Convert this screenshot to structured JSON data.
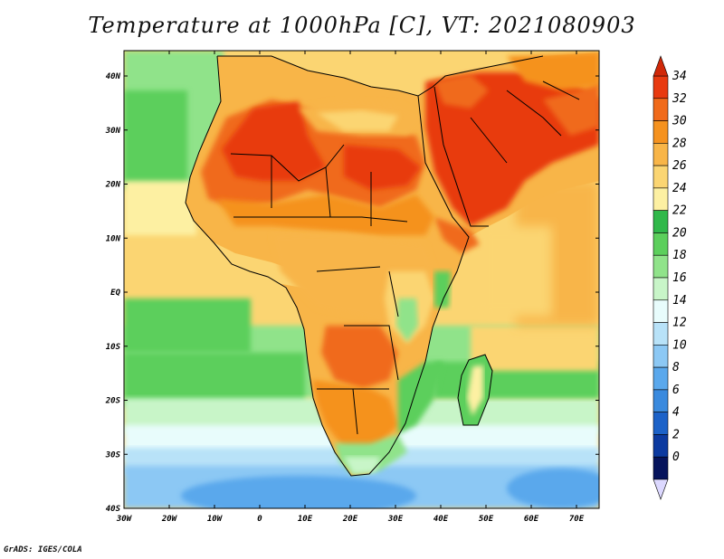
{
  "title": "Temperature at 1000hPa [C], VT: 2021080903",
  "credit": "GrADS: IGES/COLA",
  "lon_labels": [
    "30W",
    "20W",
    "10W",
    "0",
    "10E",
    "20E",
    "30E",
    "40E",
    "50E",
    "60E",
    "70E"
  ],
  "lat_labels": [
    "40N",
    "30N",
    "20N",
    "10N",
    "EQ",
    "10S",
    "20S",
    "30S",
    "40S"
  ],
  "colorbar": {
    "labels": [
      "34",
      "32",
      "30",
      "28",
      "26",
      "24",
      "22",
      "20",
      "18",
      "16",
      "14",
      "12",
      "10",
      "8",
      "6",
      "4",
      "2",
      "0"
    ],
    "colors": [
      "#e83a10",
      "#f06a1a",
      "#f5921f",
      "#f8b548",
      "#fbd572",
      "#fdf0a2",
      "#30b84a",
      "#5ccf5c",
      "#90e38a",
      "#c8f5c8",
      "#e8fcfc",
      "#b8e2f8",
      "#8cc8f4",
      "#5aa8ec",
      "#3a8ade",
      "#1c62c8",
      "#0c3aa0",
      "#06145c"
    ],
    "top_color": "#d02808",
    "bottom_color": "#dcd8ff"
  },
  "palette": {
    "ocean_south_deep": "#5aa8ec",
    "ocean_south_mid": "#8cc8f4",
    "ocean_south_light": "#b8e2f8",
    "ocean_cool": "#c8f5c8",
    "ocean_green": "#5ccf5c",
    "ocean_lightgreen": "#90e38a",
    "ocean_warm": "#fdf0a2",
    "ocean_warmer": "#fbd572",
    "land_warm": "#f8b548",
    "land_hot": "#f5921f",
    "land_hotter": "#f06a1a",
    "land_hottest": "#e83a10"
  }
}
